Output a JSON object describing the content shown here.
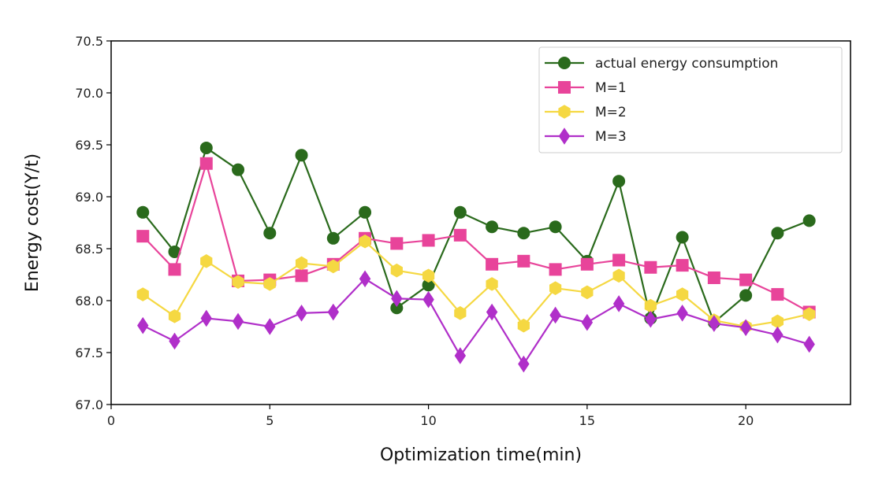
{
  "chart_data": {
    "type": "line",
    "title": "",
    "xlabel": "Optimization time(min)",
    "ylabel": "Energy cost(Y/t)",
    "xlim": [
      0,
      23.3
    ],
    "ylim": [
      67.0,
      70.5
    ],
    "xticks": [
      0,
      5,
      10,
      15,
      20
    ],
    "yticks": [
      67.0,
      67.5,
      68.0,
      68.5,
      69.0,
      69.5,
      70.0,
      70.5
    ],
    "xtick_labels": [
      "0",
      "5",
      "10",
      "15",
      "20"
    ],
    "ytick_labels": [
      "67.0",
      "67.5",
      "68.0",
      "68.5",
      "69.0",
      "69.5",
      "70.0",
      "70.5"
    ],
    "grid": false,
    "legend_position": "top-right",
    "x": [
      1,
      2,
      3,
      4,
      5,
      6,
      7,
      8,
      9,
      10,
      11,
      12,
      13,
      14,
      15,
      16,
      17,
      18,
      19,
      20,
      21,
      22
    ],
    "series": [
      {
        "name": "actual energy consumption",
        "color": "#2a6a1c",
        "marker": "circle",
        "values": [
          68.85,
          68.47,
          69.47,
          69.26,
          68.65,
          69.4,
          68.6,
          68.85,
          67.93,
          68.15,
          68.85,
          68.71,
          68.65,
          68.71,
          68.38,
          69.15,
          67.83,
          68.61,
          67.79,
          68.05,
          68.65,
          68.77
        ]
      },
      {
        "name": "M=1",
        "color": "#e8449a",
        "marker": "square",
        "values": [
          68.62,
          68.3,
          69.32,
          68.19,
          68.2,
          68.24,
          68.35,
          68.6,
          68.55,
          68.58,
          68.63,
          68.35,
          68.38,
          68.3,
          68.35,
          68.39,
          68.32,
          68.34,
          68.22,
          68.2,
          68.06,
          67.89
        ]
      },
      {
        "name": "M=2",
        "color": "#f5d842",
        "marker": "hexagon",
        "values": [
          68.06,
          67.85,
          68.38,
          68.18,
          68.16,
          68.36,
          68.33,
          68.57,
          68.29,
          68.24,
          67.88,
          68.16,
          67.76,
          68.12,
          68.08,
          68.24,
          67.95,
          68.06,
          67.81,
          67.75,
          67.8,
          67.87
        ]
      },
      {
        "name": "M=3",
        "color": "#b02fc9",
        "marker": "diamond",
        "values": [
          67.76,
          67.61,
          67.83,
          67.8,
          67.75,
          67.88,
          67.89,
          68.21,
          68.02,
          68.01,
          67.47,
          67.89,
          67.39,
          67.86,
          67.79,
          67.97,
          67.82,
          67.88,
          67.78,
          67.74,
          67.67,
          67.58
        ]
      }
    ]
  }
}
